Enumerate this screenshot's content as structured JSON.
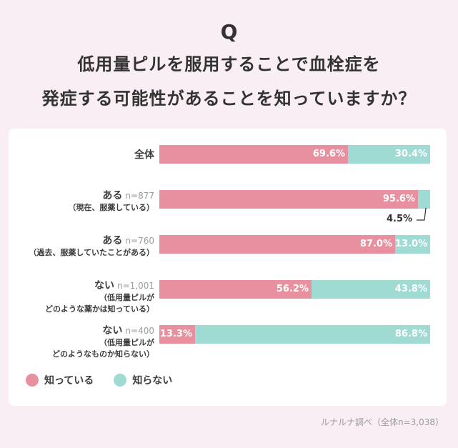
{
  "header": {
    "q": "Q",
    "title_line1": "低用量ピルを服用することで血栓症を",
    "title_line2": "発症する可能性があることを知っていますか？"
  },
  "legend": {
    "know": "知っている",
    "dont": "知らない"
  },
  "colors": {
    "know": "#e8909f",
    "dont": "#9fdad3"
  },
  "source": "ルナルナ調べ（全体n=3,038）",
  "callout_label": "4.5%",
  "chart_data": {
    "type": "bar",
    "stacked": true,
    "orientation": "horizontal",
    "unit": "%",
    "categories": [
      {
        "main": "全体",
        "n": "",
        "sub": ""
      },
      {
        "main": "ある",
        "n": "n=877",
        "sub": "（現在、服薬している）"
      },
      {
        "main": "ある",
        "n": "n=760",
        "sub": "（過去、服薬していたことがある）"
      },
      {
        "main": "ない",
        "n": "n=1,001",
        "sub": "（低用量ピルが\nどのような薬かは知っている）"
      },
      {
        "main": "ない",
        "n": "n=400",
        "sub": "（低用量ピルが\nどのようなものか知らない）"
      }
    ],
    "series": [
      {
        "name": "知っている",
        "values": [
          69.6,
          95.6,
          87.0,
          56.2,
          13.3
        ],
        "labels": [
          "69.6%",
          "95.6%",
          "87.0%",
          "56.2%",
          "13.3%"
        ]
      },
      {
        "name": "知らない",
        "values": [
          30.4,
          4.5,
          13.0,
          43.8,
          86.8
        ],
        "labels": [
          "30.4%",
          "",
          "13.0%",
          "43.8%",
          "86.8%"
        ]
      }
    ]
  }
}
